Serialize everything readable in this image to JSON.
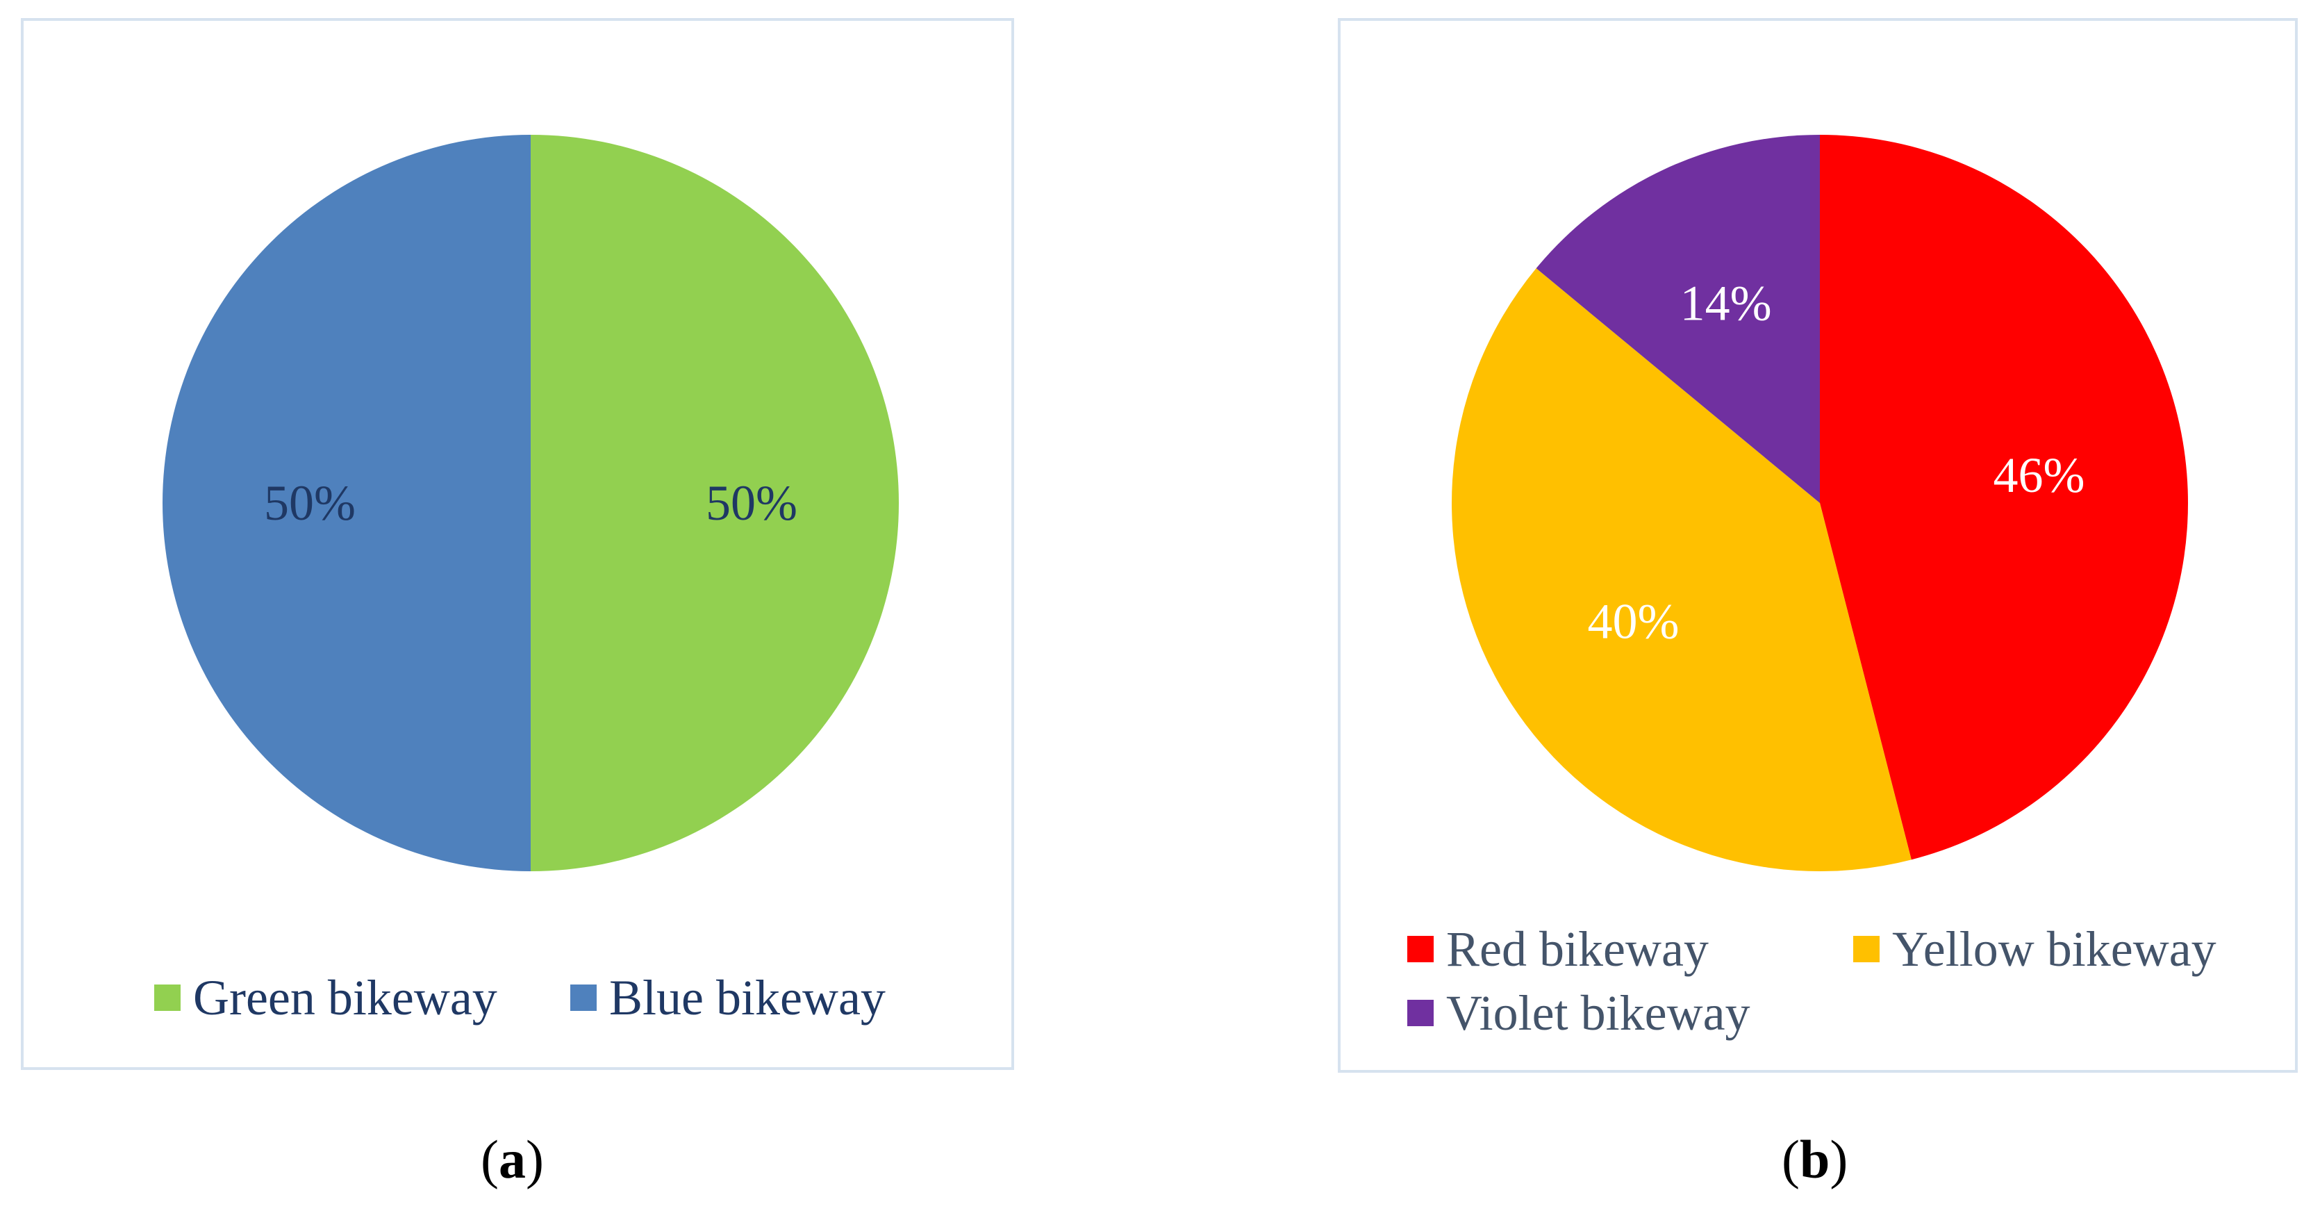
{
  "chart_data": [
    {
      "type": "pie",
      "panel_label": "a",
      "slices": [
        {
          "name": "Green bikeway",
          "value": 50,
          "label": "50%",
          "color": "#92d050",
          "label_color": "#1f3864"
        },
        {
          "name": "Blue bikeway",
          "value": 50,
          "label": "50%",
          "color": "#4f81bd",
          "label_color": "#1f3864"
        }
      ],
      "legend": [
        "Green bikeway",
        "Blue bikeway"
      ],
      "legend_position": "bottom"
    },
    {
      "type": "pie",
      "panel_label": "b",
      "slices": [
        {
          "name": "Red bikeway",
          "value": 46,
          "label": "46%",
          "color": "#ff0000",
          "label_color": "#ffffff"
        },
        {
          "name": "Yellow bikeway",
          "value": 40,
          "label": "40%",
          "color": "#ffc000",
          "label_color": "#ffffff"
        },
        {
          "name": "Violet bikeway",
          "value": 14,
          "label": "14%",
          "color": "#7030a0",
          "label_color": "#ffffff"
        }
      ],
      "legend": [
        "Red bikeway",
        "Yellow bikeway",
        "Violet bikeway"
      ],
      "legend_position": "bottom"
    }
  ],
  "captions": {
    "a": {
      "open": "(",
      "letter": "a",
      "close": ")"
    },
    "b": {
      "open": "(",
      "letter": "b",
      "close": ")"
    }
  }
}
